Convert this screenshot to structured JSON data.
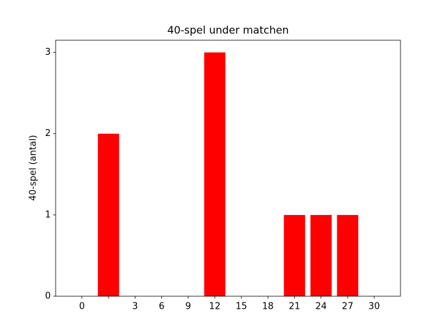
{
  "chart_data": {
    "type": "bar",
    "title": "40-spel under matchen",
    "y_label": "40-spel (antal)",
    "categories": [
      "0",
      null,
      "3",
      "6",
      "9",
      "12",
      "15",
      "18",
      "21",
      "24",
      "27",
      "30"
    ],
    "values": [
      0,
      2,
      0,
      0,
      0,
      3,
      0,
      0,
      1,
      1,
      1,
      0
    ],
    "color": "#ff0000",
    "ylim": [
      0,
      3.15
    ],
    "yticks": [
      0,
      1,
      2,
      3
    ],
    "grid": false
  }
}
